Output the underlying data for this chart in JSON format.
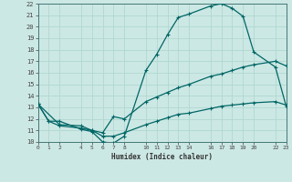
{
  "xlabel": "Humidex (Indice chaleur)",
  "bg_color": "#cce8e4",
  "grid_color": "#b0d8d0",
  "line_color": "#006666",
  "ylim": [
    10,
    22
  ],
  "xlim": [
    0,
    23
  ],
  "yticks": [
    10,
    11,
    12,
    13,
    14,
    15,
    16,
    17,
    18,
    19,
    20,
    21,
    22
  ],
  "xticks": [
    0,
    1,
    2,
    4,
    5,
    6,
    7,
    8,
    10,
    11,
    12,
    13,
    14,
    16,
    17,
    18,
    19,
    20,
    22,
    23
  ],
  "line1_x": [
    0,
    1,
    2,
    4,
    5,
    6,
    7,
    8,
    10,
    11,
    12,
    13,
    14,
    16,
    17,
    18,
    19,
    20,
    22,
    23
  ],
  "line1_y": [
    13.3,
    11.8,
    11.8,
    11.1,
    10.9,
    10.0,
    9.9,
    10.5,
    16.2,
    17.6,
    19.3,
    20.8,
    21.1,
    21.8,
    22.0,
    21.6,
    20.9,
    17.8,
    16.5,
    13.1
  ],
  "line2_x": [
    0,
    2,
    4,
    5,
    6,
    7,
    8,
    10,
    11,
    12,
    13,
    14,
    16,
    17,
    18,
    19,
    20,
    22,
    23
  ],
  "line2_y": [
    13.3,
    11.5,
    11.4,
    11.0,
    10.8,
    12.2,
    12.0,
    13.5,
    13.9,
    14.3,
    14.7,
    15.0,
    15.7,
    15.9,
    16.2,
    16.5,
    16.7,
    17.0,
    16.6
  ],
  "line3_x": [
    0,
    1,
    2,
    4,
    5,
    6,
    7,
    8,
    10,
    11,
    12,
    13,
    14,
    16,
    17,
    18,
    19,
    20,
    22,
    23
  ],
  "line3_y": [
    13.3,
    11.8,
    11.4,
    11.2,
    11.0,
    10.5,
    10.5,
    10.8,
    11.5,
    11.8,
    12.1,
    12.4,
    12.5,
    12.9,
    13.1,
    13.2,
    13.3,
    13.4,
    13.5,
    13.2
  ]
}
